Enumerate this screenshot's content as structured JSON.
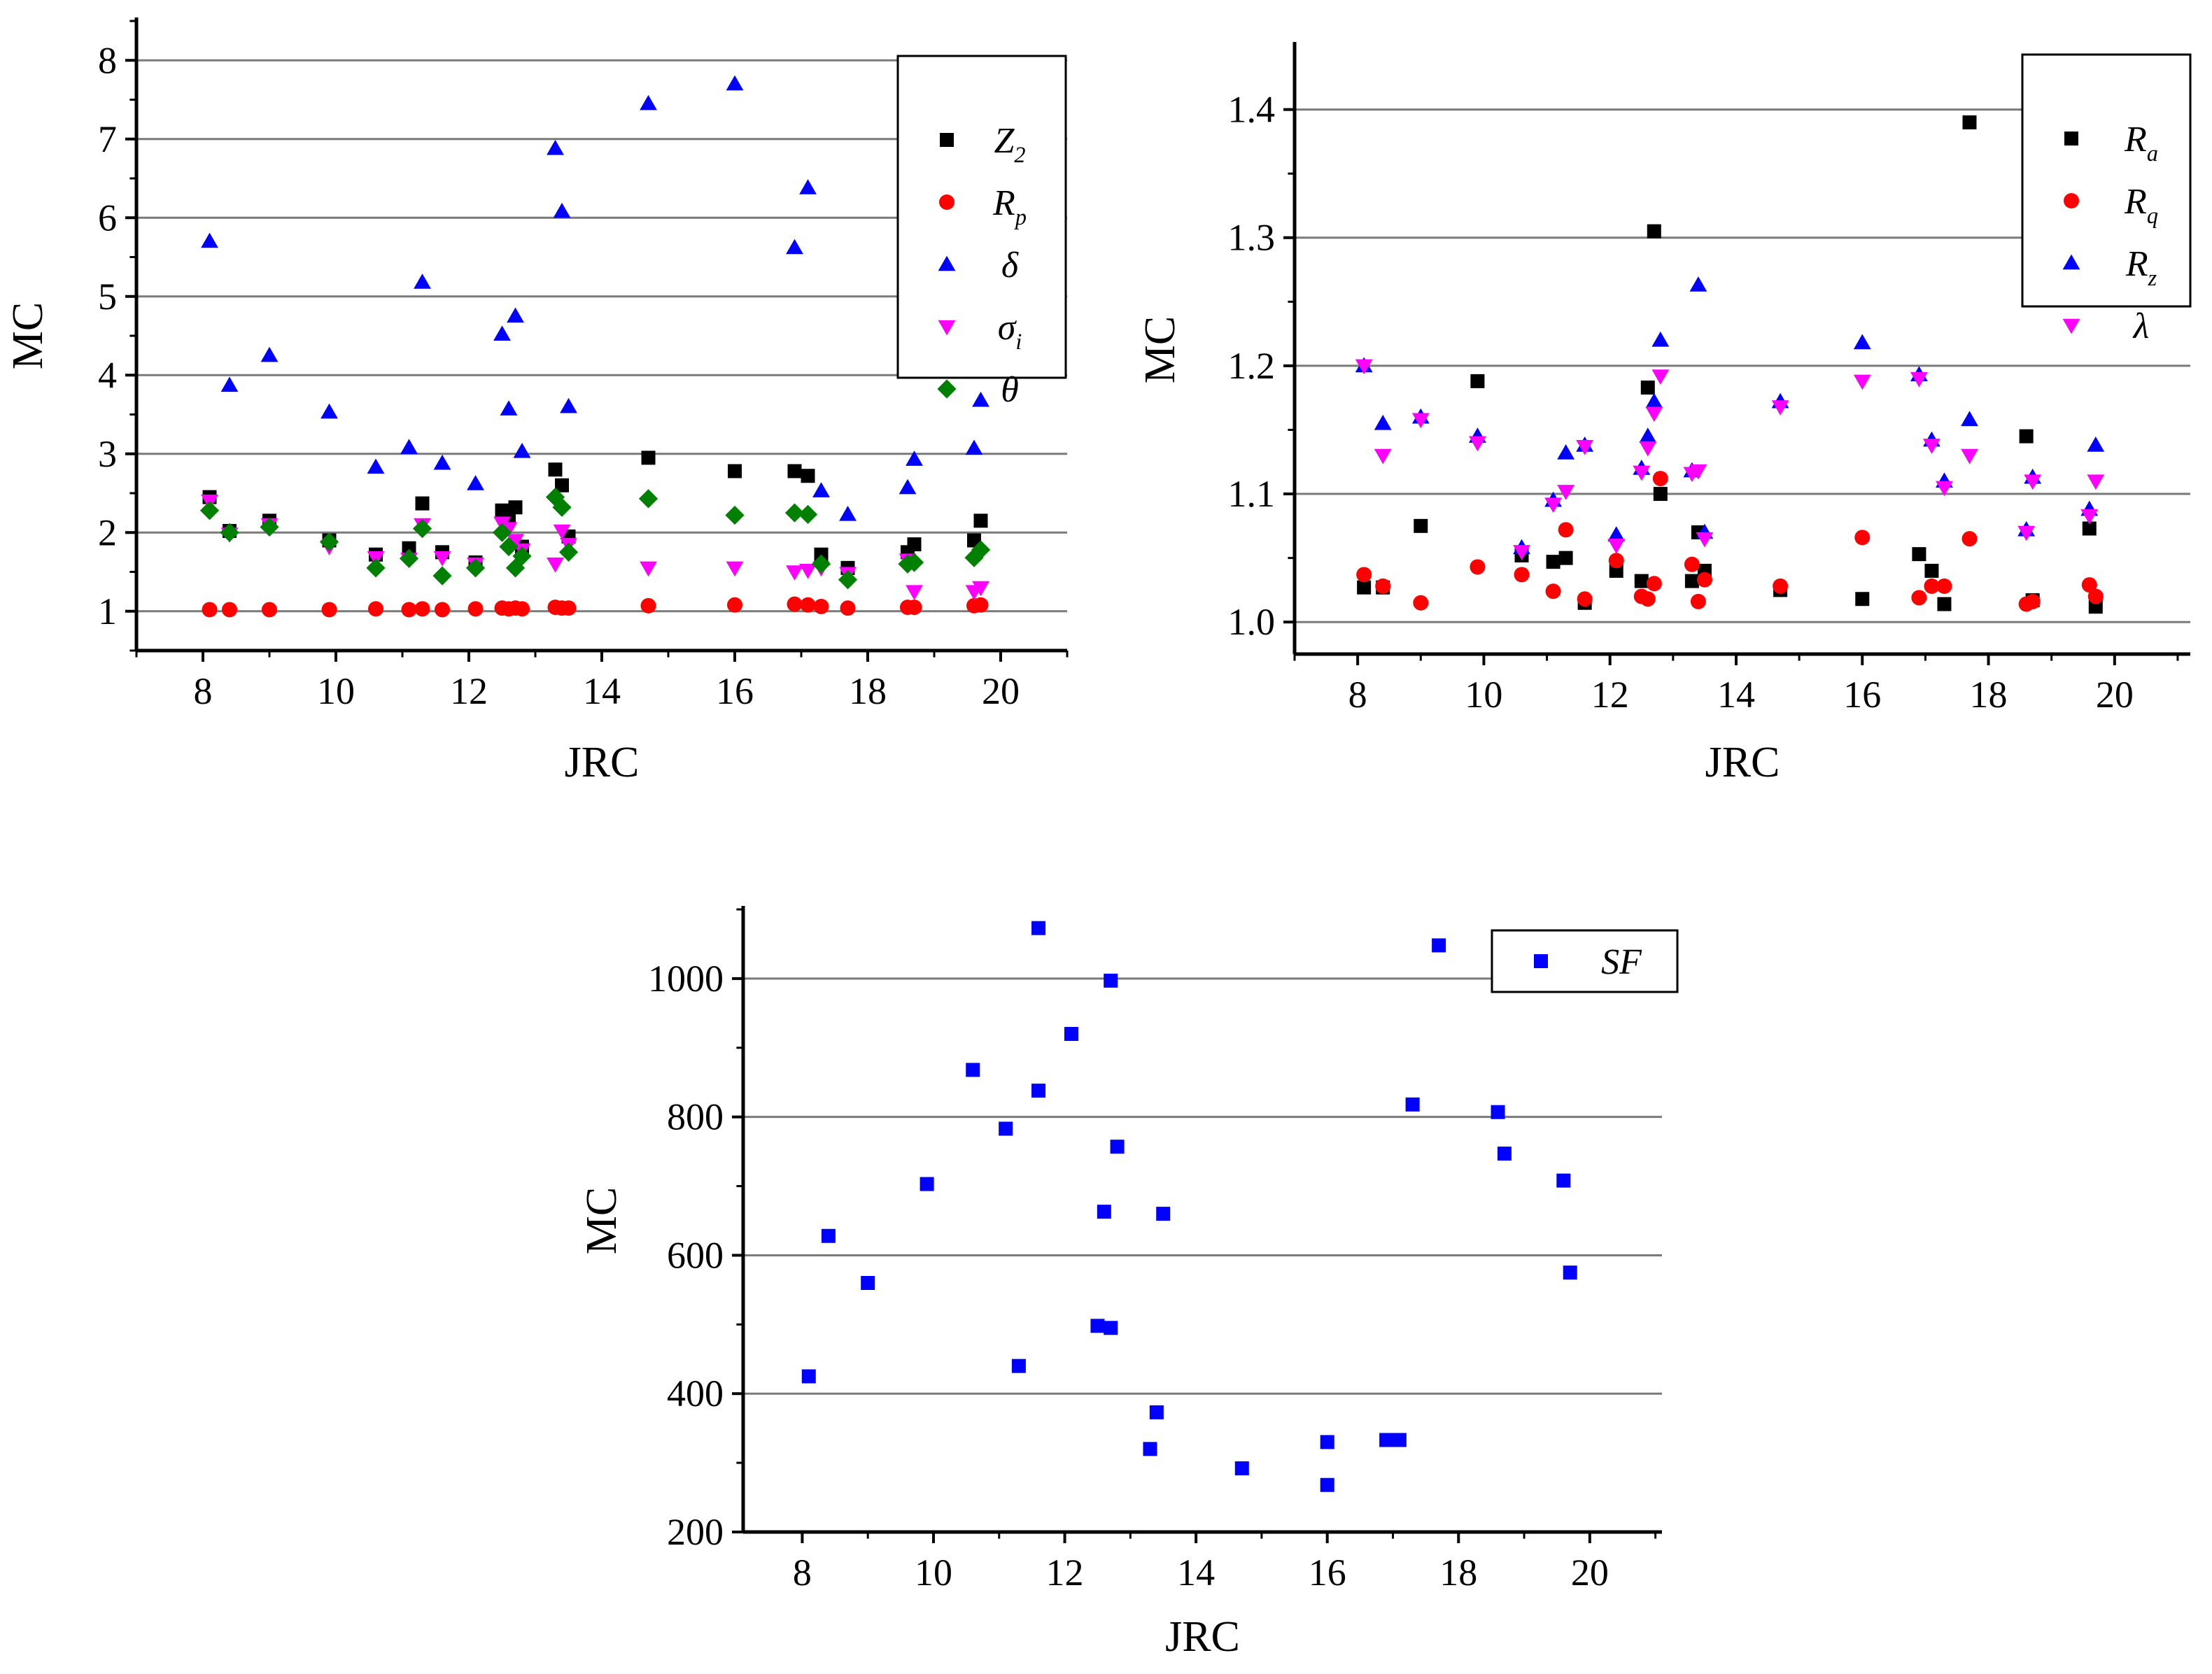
{
  "chart_data": [
    {
      "type": "scatter",
      "xlabel": "JRC",
      "ylabel": "MC",
      "xlim": [
        7,
        21
      ],
      "ylim": [
        0.5,
        8.5
      ],
      "xticks": [
        8,
        10,
        12,
        14,
        16,
        18,
        20
      ],
      "yticks": [
        1,
        2,
        3,
        4,
        5,
        6,
        7,
        8
      ],
      "grid": true,
      "legend_position": "top-right",
      "x": [
        8.1,
        8.4,
        9.0,
        9.9,
        10.6,
        11.1,
        11.3,
        11.6,
        12.1,
        12.5,
        12.6,
        12.7,
        12.8,
        13.3,
        13.4,
        13.5,
        14.7,
        16.0,
        16.9,
        17.1,
        17.3,
        17.7,
        18.6,
        18.7,
        19.6,
        19.7
      ],
      "series": [
        {
          "name": "Z2",
          "label_main": "Z",
          "label_sub": "2",
          "marker": "square",
          "color": "#000000",
          "values": [
            2.45,
            2.02,
            2.15,
            1.9,
            1.72,
            1.8,
            2.37,
            1.75,
            1.62,
            2.28,
            2.22,
            2.32,
            1.82,
            2.8,
            2.6,
            1.95,
            2.95,
            2.78,
            2.78,
            2.72,
            1.72,
            1.55,
            1.75,
            1.85,
            1.9,
            2.15
          ]
        },
        {
          "name": "Rp",
          "label_main": "R",
          "label_sub": "p",
          "marker": "circle",
          "color": "#ff0000",
          "values": [
            1.02,
            1.02,
            1.02,
            1.02,
            1.03,
            1.02,
            1.03,
            1.02,
            1.03,
            1.04,
            1.03,
            1.04,
            1.03,
            1.05,
            1.04,
            1.04,
            1.07,
            1.08,
            1.09,
            1.08,
            1.06,
            1.04,
            1.05,
            1.05,
            1.07,
            1.08
          ]
        },
        {
          "name": "δ",
          "label_main": "δ",
          "label_sub": "",
          "marker": "triangle-up",
          "color": "#0000ff",
          "values": [
            5.7,
            3.87,
            4.25,
            3.53,
            2.83,
            3.08,
            5.18,
            2.88,
            2.62,
            4.52,
            3.57,
            4.75,
            3.03,
            6.88,
            6.08,
            3.6,
            7.45,
            7.7,
            5.62,
            6.38,
            2.53,
            2.23,
            2.57,
            2.93,
            3.07,
            3.68
          ]
        },
        {
          "name": "σi",
          "label_main": "σ",
          "label_sub": "i",
          "marker": "triangle-down",
          "color": "#ff00ff",
          "values": [
            2.4,
            1.98,
            2.1,
            1.82,
            1.68,
            1.66,
            2.1,
            1.68,
            1.6,
            2.12,
            2.05,
            1.9,
            1.78,
            1.6,
            2.02,
            1.85,
            1.55,
            1.55,
            1.5,
            1.52,
            1.55,
            1.48,
            1.65,
            1.25,
            1.25,
            1.3
          ]
        },
        {
          "name": "θ",
          "label_main": "θ",
          "label_sub": "",
          "marker": "diamond",
          "color": "#008000",
          "values": [
            2.28,
            2.0,
            2.07,
            1.88,
            1.55,
            1.67,
            2.05,
            1.45,
            1.55,
            2.0,
            1.82,
            1.55,
            1.7,
            2.45,
            2.32,
            1.75,
            2.43,
            2.22,
            2.25,
            2.23,
            1.6,
            1.4,
            1.6,
            1.62,
            1.68,
            1.78
          ]
        }
      ]
    },
    {
      "type": "scatter",
      "xlabel": "JRC",
      "ylabel": "MC",
      "xlim": [
        7.0,
        21.2
      ],
      "ylim": [
        0.975,
        1.45
      ],
      "xticks": [
        8,
        10,
        12,
        14,
        16,
        18,
        20
      ],
      "yticks": [
        1.0,
        1.1,
        1.2,
        1.3,
        1.4
      ],
      "ytick_labels": [
        "1.0",
        "1.1",
        "1.2",
        "1.3",
        "1.4"
      ],
      "grid": true,
      "legend_position": "top-right",
      "x": [
        8.1,
        8.4,
        9.0,
        9.9,
        10.6,
        11.1,
        11.3,
        11.6,
        12.1,
        12.5,
        12.6,
        12.7,
        12.8,
        13.3,
        13.4,
        13.5,
        14.7,
        16.0,
        16.9,
        17.1,
        17.3,
        17.7,
        18.6,
        18.7,
        19.6,
        19.7
      ],
      "series": [
        {
          "name": "Ra",
          "label_main": "R",
          "label_sub": "a",
          "marker": "square",
          "color": "#000000",
          "values": [
            1.027,
            1.027,
            1.075,
            1.188,
            1.052,
            1.047,
            1.05,
            1.015,
            1.04,
            1.032,
            1.183,
            1.305,
            1.1,
            1.032,
            1.07,
            1.04,
            1.025,
            1.018,
            1.053,
            1.04,
            1.014,
            1.39,
            1.145,
            1.017,
            1.073,
            1.012
          ]
        },
        {
          "name": "Rq",
          "label_main": "R",
          "label_sub": "q",
          "marker": "circle",
          "color": "#ff0000",
          "values": [
            1.037,
            1.028,
            1.015,
            1.043,
            1.037,
            1.024,
            1.072,
            1.018,
            1.048,
            1.02,
            1.018,
            1.03,
            1.112,
            1.045,
            1.016,
            1.033,
            1.028,
            1.066,
            1.019,
            1.028,
            1.028,
            1.065,
            1.014,
            1.016,
            1.029,
            1.02
          ]
        },
        {
          "name": "Rz",
          "label_main": "R",
          "label_sub": "z",
          "marker": "triangle-up",
          "color": "#0000ff",
          "values": [
            1.2,
            1.155,
            1.16,
            1.145,
            1.058,
            1.095,
            1.132,
            1.138,
            1.068,
            1.12,
            1.145,
            1.172,
            1.22,
            1.118,
            1.263,
            1.07,
            1.172,
            1.218,
            1.193,
            1.142,
            1.11,
            1.158,
            1.072,
            1.113,
            1.088,
            1.138
          ]
        },
        {
          "name": "λ",
          "label_main": "λ",
          "label_sub": "",
          "marker": "triangle-down",
          "color": "#ff00ff",
          "values": [
            1.2,
            1.13,
            1.158,
            1.14,
            1.055,
            1.092,
            1.102,
            1.137,
            1.06,
            1.117,
            1.136,
            1.163,
            1.192,
            1.116,
            1.118,
            1.065,
            1.168,
            1.188,
            1.19,
            1.138,
            1.105,
            1.13,
            1.07,
            1.11,
            1.083,
            1.11
          ]
        }
      ]
    },
    {
      "type": "scatter",
      "xlabel": "JRC",
      "ylabel": "MC",
      "xlim": [
        7.1,
        21.1
      ],
      "ylim": [
        200,
        1100
      ],
      "xticks": [
        8,
        10,
        12,
        14,
        16,
        18,
        20
      ],
      "yticks": [
        200,
        400,
        600,
        800,
        1000
      ],
      "grid": true,
      "legend_position": "top-right",
      "x": [
        8.1,
        8.4,
        9.0,
        9.9,
        10.6,
        11.1,
        11.3,
        11.6,
        11.6,
        12.1,
        12.5,
        12.6,
        12.7,
        12.7,
        12.8,
        13.3,
        13.4,
        13.5,
        14.7,
        16.0,
        16.0,
        16.9,
        17.1,
        17.3,
        17.7,
        18.6,
        18.7,
        19.6,
        19.7
      ],
      "series": [
        {
          "name": "SF",
          "label_main": "SF",
          "label_sub": "",
          "marker": "square",
          "color": "#0000ff",
          "values": [
            425,
            628,
            560,
            703,
            868,
            783,
            440,
            1073,
            838,
            920,
            498,
            663,
            495,
            997,
            757,
            320,
            373,
            660,
            292,
            268,
            330,
            333,
            333,
            818,
            1048,
            807,
            747,
            708,
            575
          ]
        }
      ]
    }
  ]
}
